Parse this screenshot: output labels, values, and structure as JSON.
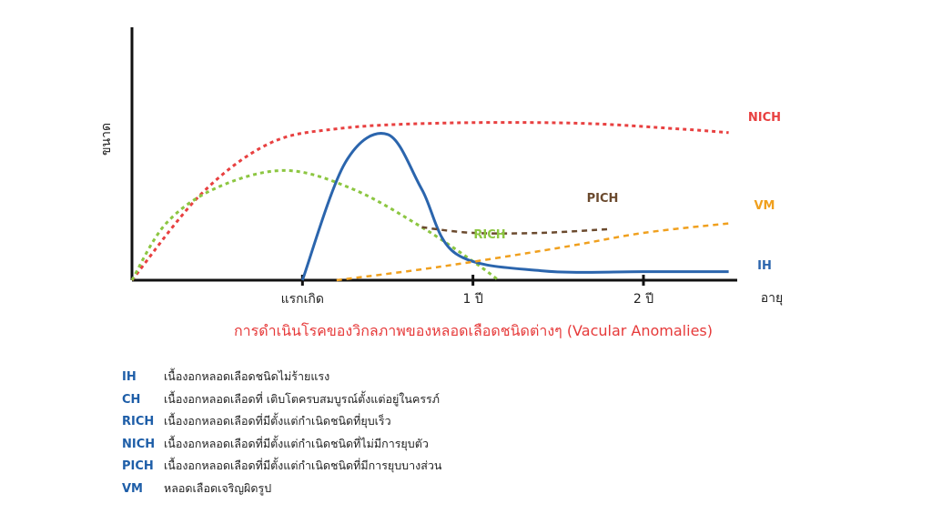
{
  "chart_data": {
    "type": "line",
    "title": "การดำเนินโรคของวิกลภาพของหลอดเลือดชนิดต่างๆ (Vacular Anomalies)",
    "ylabel": "ขนาด",
    "xlabel": "อายุ",
    "x_ticks": [
      {
        "x": 0,
        "label": "แรกเกิด"
      },
      {
        "x": 1,
        "label": "1 ปี"
      },
      {
        "x": 2,
        "label": "2 ปี"
      }
    ],
    "xlim": [
      -1,
      2.55
    ],
    "ylim": [
      0,
      1
    ],
    "grid": false,
    "series": [
      {
        "name": "NICH",
        "style": "dotted",
        "color": "#e84040",
        "points": [
          [
            -1,
            0
          ],
          [
            -0.6,
            0.45
          ],
          [
            -0.2,
            0.72
          ],
          [
            0.2,
            0.8
          ],
          [
            0.8,
            0.83
          ],
          [
            1.6,
            0.83
          ],
          [
            2.2,
            0.8
          ],
          [
            2.5,
            0.78
          ]
        ]
      },
      {
        "name": "RICH",
        "style": "dotted",
        "color": "#8cc641",
        "points": [
          [
            -1,
            0
          ],
          [
            -0.8,
            0.3
          ],
          [
            -0.5,
            0.49
          ],
          [
            -0.1,
            0.58
          ],
          [
            0.3,
            0.48
          ],
          [
            0.7,
            0.28
          ],
          [
            1.0,
            0.1
          ],
          [
            1.15,
            0
          ]
        ]
      },
      {
        "name": "IH",
        "style": "solid",
        "color": "#2b65ad",
        "points": [
          [
            0,
            0
          ],
          [
            0.25,
            0.62
          ],
          [
            0.5,
            0.77
          ],
          [
            0.7,
            0.48
          ],
          [
            0.9,
            0.14
          ],
          [
            1.4,
            0.05
          ],
          [
            2.0,
            0.045
          ],
          [
            2.5,
            0.045
          ]
        ]
      },
      {
        "name": "PICH",
        "style": "dashed",
        "color": "#6b4a2e",
        "points": [
          [
            0.7,
            0.28
          ],
          [
            1.0,
            0.25
          ],
          [
            1.4,
            0.25
          ],
          [
            1.8,
            0.27
          ]
        ]
      },
      {
        "name": "VM",
        "style": "dashed",
        "color": "#f0a01e",
        "points": [
          [
            0.2,
            0
          ],
          [
            0.8,
            0.07
          ],
          [
            1.5,
            0.17
          ],
          [
            2.0,
            0.25
          ],
          [
            2.5,
            0.3
          ]
        ]
      }
    ]
  },
  "legend": [
    {
      "abbr": "IH",
      "desc": "เนื้องอกหลอดเลือดชนิดไม่ร้ายแรง"
    },
    {
      "abbr": "CH",
      "desc": "เนื้องอกหลอดเลือดที่ เติบโตครบสมบูรณ์ตั้งแต่อยู่ในครรภ์"
    },
    {
      "abbr": "RICH",
      "desc": "เนื้องอกหลอดเลือดที่มีตั้งแต่กำเนิดชนิดที่ยุบเร็ว"
    },
    {
      "abbr": "NICH",
      "desc": "เนื้องอกหลอดเลือดที่มีตั้งแต่กำเนิดชนิดที่ไม่มีการยุบตัว"
    },
    {
      "abbr": "PICH",
      "desc": "เนื้องอกหลอดเลือดที่มีตั้งแต่กำเนิดชนิดที่มีการยุบบางส่วน"
    },
    {
      "abbr": "VM",
      "desc": "หลอดเลือดเจริญผิดรูป"
    }
  ]
}
